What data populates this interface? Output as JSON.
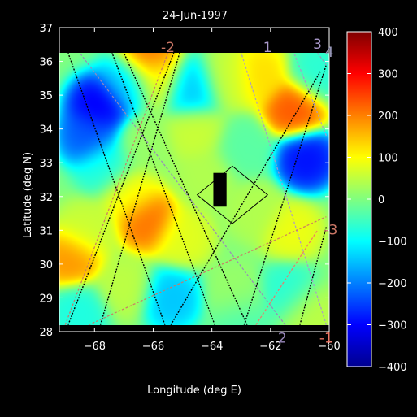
{
  "chart_data": {
    "type": "heatmap",
    "title": "24-Jun-1997",
    "xlabel": "Longitude (deg E)",
    "ylabel": "Latitude (deg N)",
    "xlim": [
      -69.2,
      -60
    ],
    "ylim": [
      28,
      37
    ],
    "data_extent": {
      "lon": [
        -69.2,
        -60
      ],
      "lat": [
        28.2,
        36.25
      ]
    },
    "x_ticks": [
      -68,
      -66,
      -64,
      -62,
      -60
    ],
    "x_tick_labels": [
      "−68",
      "−66",
      "−64",
      "−62",
      "−60"
    ],
    "y_ticks": [
      28,
      29,
      30,
      31,
      32,
      33,
      34,
      35,
      36,
      37
    ],
    "y_tick_labels": [
      "28",
      "29",
      "30",
      "31",
      "32",
      "33",
      "34",
      "35",
      "36",
      "37"
    ],
    "colorbar": {
      "range": [
        -400,
        400
      ],
      "ticks": [
        400,
        300,
        200,
        100,
        0,
        -100,
        -200,
        -300,
        -400
      ],
      "tick_labels": [
        "400",
        "300",
        "200",
        "100",
        "0",
        "−100",
        "−200",
        "−300",
        "−400"
      ],
      "colormap": "jet"
    },
    "features": [
      {
        "lon": -66.9,
        "lat": 35.4,
        "value": -150
      },
      {
        "lon": -67.9,
        "lat": 34.7,
        "value": -320
      },
      {
        "lon": -68.2,
        "lat": 33.8,
        "value": -240
      },
      {
        "lon": -67.6,
        "lat": 32.9,
        "value": -80
      },
      {
        "lon": -66.2,
        "lat": 36.1,
        "value": 230
      },
      {
        "lon": -65.9,
        "lat": 35.5,
        "value": 90
      },
      {
        "lon": -64.7,
        "lat": 35.2,
        "value": -150
      },
      {
        "lon": -63.5,
        "lat": 35.5,
        "value": 60
      },
      {
        "lon": -62.4,
        "lat": 35.6,
        "value": 130
      },
      {
        "lon": -61.2,
        "lat": 34.6,
        "value": 240
      },
      {
        "lon": -60.8,
        "lat": 33.1,
        "value": -300
      },
      {
        "lon": -60.4,
        "lat": 35.6,
        "value": -70
      },
      {
        "lon": -66.8,
        "lat": 32.1,
        "value": 100
      },
      {
        "lon": -66.2,
        "lat": 31.3,
        "value": 220
      },
      {
        "lon": -68.3,
        "lat": 31.0,
        "value": 60
      },
      {
        "lon": -68.8,
        "lat": 30.2,
        "value": 190
      },
      {
        "lon": -65.0,
        "lat": 30.8,
        "value": 80
      },
      {
        "lon": -64.2,
        "lat": 32.6,
        "value": 40
      },
      {
        "lon": -62.9,
        "lat": 33.4,
        "value": -30
      },
      {
        "lon": -62.5,
        "lat": 31.6,
        "value": 40
      },
      {
        "lon": -61.3,
        "lat": 31.0,
        "value": 90
      },
      {
        "lon": -61.4,
        "lat": 29.2,
        "value": -70
      },
      {
        "lon": -63.2,
        "lat": 29.1,
        "value": 20
      },
      {
        "lon": -65.4,
        "lat": 29.0,
        "value": -150
      },
      {
        "lon": -67.0,
        "lat": 29.3,
        "value": 50
      },
      {
        "lon": -68.5,
        "lat": 28.6,
        "value": -80
      },
      {
        "lon": -64.6,
        "lat": 33.9,
        "value": 60
      },
      {
        "lon": -66.3,
        "lat": 33.5,
        "value": 20
      },
      {
        "lon": -63.0,
        "lat": 28.4,
        "value": -40
      },
      {
        "lon": -60.7,
        "lat": 28.6,
        "value": 50
      }
    ],
    "background_value": 0,
    "tracks": [
      {
        "label": "1",
        "color": "#aa99cc",
        "from": [
          -60.1,
          28.2
        ],
        "to": [
          -63.0,
          36.25
        ]
      },
      {
        "label": "2",
        "color": "#9988bb",
        "from": [
          -61.5,
          28.2
        ],
        "to": [
          -68.5,
          36.25
        ]
      },
      {
        "label": "3",
        "color": "#aa99cc",
        "from": [
          -60.1,
          33.8
        ],
        "to": [
          -61.2,
          36.25
        ]
      },
      {
        "label": "4",
        "color": "#9999bb",
        "from": [
          -60.1,
          35.9
        ],
        "to": [
          -60.4,
          36.25
        ]
      },
      {
        "label": "-1",
        "color": "#ee7766",
        "from": [
          -62.5,
          28.2
        ],
        "to": [
          -60.4,
          31.0
        ]
      },
      {
        "label": "-2",
        "color": "#cc7766",
        "from": [
          -69.0,
          28.2
        ],
        "to": [
          -65.5,
          36.25
        ]
      },
      {
        "label": "-3",
        "color": "#cc7766",
        "from": [
          -68.2,
          28.2
        ],
        "to": [
          -60.1,
          31.4
        ]
      }
    ],
    "track_labels": [
      {
        "text": "1",
        "lon": -62.1,
        "lat": 36.4,
        "color": "#aa99cc"
      },
      {
        "text": "2",
        "lon": -61.6,
        "lat": 27.8,
        "color": "#9988bb"
      },
      {
        "text": "3",
        "lon": -60.4,
        "lat": 36.5,
        "color": "#aa99cc"
      },
      {
        "text": "4",
        "lon": -60.0,
        "lat": 36.25,
        "color": "#9999bb"
      },
      {
        "text": "-1",
        "lon": -60.1,
        "lat": 27.8,
        "color": "#ee7766"
      },
      {
        "text": "-2",
        "lon": -65.5,
        "lat": 36.4,
        "color": "#cc7766"
      },
      {
        "text": "-3",
        "lon": -59.95,
        "lat": 31.0,
        "color": "#cc7766"
      }
    ],
    "black_tracks": [
      {
        "from": [
          -68.9,
          28.2
        ],
        "to": [
          -65.3,
          36.25
        ]
      },
      {
        "from": [
          -67.8,
          28.2
        ],
        "to": [
          -65.1,
          36.25
        ]
      },
      {
        "from": [
          -65.6,
          28.2
        ],
        "to": [
          -68.9,
          36.25
        ]
      },
      {
        "from": [
          -63.9,
          28.2
        ],
        "to": [
          -67.4,
          36.25
        ]
      },
      {
        "from": [
          -62.9,
          28.2
        ],
        "to": [
          -60.1,
          35.9
        ]
      },
      {
        "from": [
          -65.4,
          28.2
        ],
        "to": [
          -60.3,
          35.7
        ]
      },
      {
        "from": [
          -62.8,
          28.2
        ],
        "to": [
          -67.0,
          36.25
        ]
      },
      {
        "from": [
          -61.0,
          28.2
        ],
        "to": [
          -60.1,
          31.1
        ]
      }
    ],
    "box": {
      "center": [
        -63.3,
        32.05
      ],
      "half_lon": 1.2,
      "half_lat": 0.85
    },
    "mask": {
      "lon": [
        -63.95,
        -63.5
      ],
      "lat": [
        31.7,
        32.7
      ]
    }
  }
}
